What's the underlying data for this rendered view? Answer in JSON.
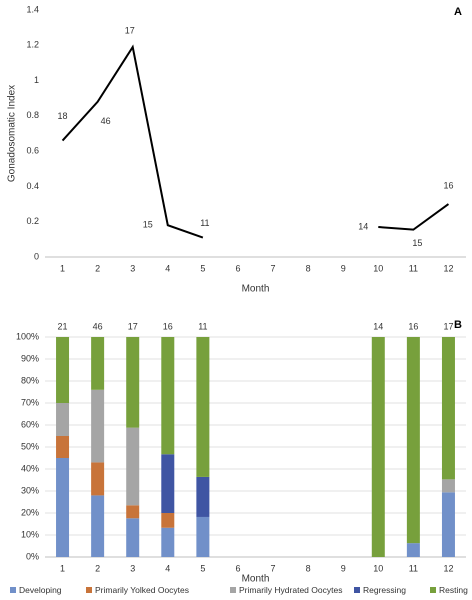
{
  "chart_data": [
    {
      "type": "line",
      "panel": "A",
      "x_label": "Month",
      "y_label": "Gonadosomatic Index",
      "categories": [
        1,
        2,
        3,
        4,
        5,
        6,
        7,
        8,
        9,
        10,
        11,
        12
      ],
      "series": [
        {
          "color": "#000000",
          "values": [
            0.66,
            0.88,
            1.19,
            0.18,
            0.11,
            null,
            null,
            null,
            null,
            0.17,
            0.155,
            0.3
          ]
        }
      ],
      "annotations": [
        18,
        46,
        17,
        15,
        11,
        null,
        null,
        null,
        null,
        14,
        15,
        16
      ],
      "ylim": [
        0,
        1.4
      ],
      "yticks": [
        0,
        0.2,
        0.4,
        0.6,
        0.8,
        1,
        1.2,
        1.4
      ],
      "grid": false
    },
    {
      "type": "stacked_bar",
      "panel": "B",
      "x_label": "Month",
      "categories": [
        1,
        2,
        3,
        4,
        5,
        6,
        7,
        8,
        9,
        10,
        11,
        12
      ],
      "series": [
        {
          "name": "Developing",
          "color": "#7190c9",
          "values": [
            45,
            28,
            17.6,
            13.3,
            18.2,
            null,
            null,
            null,
            null,
            0,
            6.3,
            29.4
          ]
        },
        {
          "name": "Primarily Yolked Oocytes",
          "color": "#c8743a",
          "values": [
            10,
            15,
            5.9,
            6.7,
            0,
            null,
            null,
            null,
            null,
            0,
            0,
            0
          ]
        },
        {
          "name": "Primarily Hydrated Oocytes",
          "color": "#a5a5a5",
          "values": [
            15,
            33,
            35.3,
            0,
            0,
            null,
            null,
            null,
            null,
            0,
            0,
            5.9
          ]
        },
        {
          "name": "Regressing",
          "color": "#3f55a3",
          "values": [
            0,
            0,
            0,
            26.7,
            18.2,
            null,
            null,
            null,
            null,
            0,
            0,
            0
          ]
        },
        {
          "name": "Resting",
          "color": "#77a03c",
          "values": [
            30,
            24,
            41.2,
            53.3,
            63.6,
            null,
            null,
            null,
            null,
            100,
            93.7,
            64.7
          ]
        }
      ],
      "annotations": [
        21,
        46,
        17,
        16,
        11,
        null,
        null,
        null,
        null,
        14,
        16,
        17
      ],
      "ylim": [
        0,
        100
      ],
      "yticks": [
        {
          "value": 0,
          "label": "0%"
        },
        {
          "value": 10,
          "label": "10%"
        },
        {
          "value": 20,
          "label": "20%"
        },
        {
          "value": 30,
          "label": "30%"
        },
        {
          "value": 40,
          "label": "40%"
        },
        {
          "value": 50,
          "label": "50%"
        },
        {
          "value": 60,
          "label": "60%"
        },
        {
          "value": 70,
          "label": "70%"
        },
        {
          "value": 80,
          "label": "80%"
        },
        {
          "value": 90,
          "label": "90%"
        },
        {
          "value": 100,
          "label": "100%"
        }
      ],
      "grid": true,
      "legend": "bottom"
    }
  ]
}
